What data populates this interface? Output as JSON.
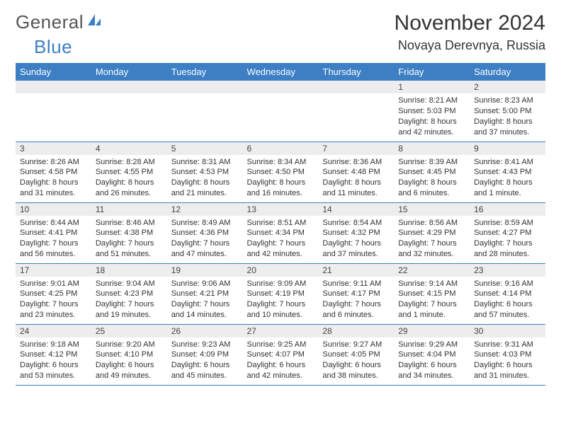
{
  "brand": {
    "word1": "General",
    "word2": "Blue"
  },
  "title": "November 2024",
  "location": "Novaya Derevnya, Russia",
  "colors": {
    "accent": "#3d7fc4",
    "daynum_bg": "#ededed",
    "text": "#333333",
    "bg": "#ffffff"
  },
  "weekdays": [
    "Sunday",
    "Monday",
    "Tuesday",
    "Wednesday",
    "Thursday",
    "Friday",
    "Saturday"
  ],
  "weeks": [
    [
      {
        "n": "",
        "sr": "",
        "ss": "",
        "dl": ""
      },
      {
        "n": "",
        "sr": "",
        "ss": "",
        "dl": ""
      },
      {
        "n": "",
        "sr": "",
        "ss": "",
        "dl": ""
      },
      {
        "n": "",
        "sr": "",
        "ss": "",
        "dl": ""
      },
      {
        "n": "",
        "sr": "",
        "ss": "",
        "dl": ""
      },
      {
        "n": "1",
        "sr": "Sunrise: 8:21 AM",
        "ss": "Sunset: 5:03 PM",
        "dl": "Daylight: 8 hours and 42 minutes."
      },
      {
        "n": "2",
        "sr": "Sunrise: 8:23 AM",
        "ss": "Sunset: 5:00 PM",
        "dl": "Daylight: 8 hours and 37 minutes."
      }
    ],
    [
      {
        "n": "3",
        "sr": "Sunrise: 8:26 AM",
        "ss": "Sunset: 4:58 PM",
        "dl": "Daylight: 8 hours and 31 minutes."
      },
      {
        "n": "4",
        "sr": "Sunrise: 8:28 AM",
        "ss": "Sunset: 4:55 PM",
        "dl": "Daylight: 8 hours and 26 minutes."
      },
      {
        "n": "5",
        "sr": "Sunrise: 8:31 AM",
        "ss": "Sunset: 4:53 PM",
        "dl": "Daylight: 8 hours and 21 minutes."
      },
      {
        "n": "6",
        "sr": "Sunrise: 8:34 AM",
        "ss": "Sunset: 4:50 PM",
        "dl": "Daylight: 8 hours and 16 minutes."
      },
      {
        "n": "7",
        "sr": "Sunrise: 8:36 AM",
        "ss": "Sunset: 4:48 PM",
        "dl": "Daylight: 8 hours and 11 minutes."
      },
      {
        "n": "8",
        "sr": "Sunrise: 8:39 AM",
        "ss": "Sunset: 4:45 PM",
        "dl": "Daylight: 8 hours and 6 minutes."
      },
      {
        "n": "9",
        "sr": "Sunrise: 8:41 AM",
        "ss": "Sunset: 4:43 PM",
        "dl": "Daylight: 8 hours and 1 minute."
      }
    ],
    [
      {
        "n": "10",
        "sr": "Sunrise: 8:44 AM",
        "ss": "Sunset: 4:41 PM",
        "dl": "Daylight: 7 hours and 56 minutes."
      },
      {
        "n": "11",
        "sr": "Sunrise: 8:46 AM",
        "ss": "Sunset: 4:38 PM",
        "dl": "Daylight: 7 hours and 51 minutes."
      },
      {
        "n": "12",
        "sr": "Sunrise: 8:49 AM",
        "ss": "Sunset: 4:36 PM",
        "dl": "Daylight: 7 hours and 47 minutes."
      },
      {
        "n": "13",
        "sr": "Sunrise: 8:51 AM",
        "ss": "Sunset: 4:34 PM",
        "dl": "Daylight: 7 hours and 42 minutes."
      },
      {
        "n": "14",
        "sr": "Sunrise: 8:54 AM",
        "ss": "Sunset: 4:32 PM",
        "dl": "Daylight: 7 hours and 37 minutes."
      },
      {
        "n": "15",
        "sr": "Sunrise: 8:56 AM",
        "ss": "Sunset: 4:29 PM",
        "dl": "Daylight: 7 hours and 32 minutes."
      },
      {
        "n": "16",
        "sr": "Sunrise: 8:59 AM",
        "ss": "Sunset: 4:27 PM",
        "dl": "Daylight: 7 hours and 28 minutes."
      }
    ],
    [
      {
        "n": "17",
        "sr": "Sunrise: 9:01 AM",
        "ss": "Sunset: 4:25 PM",
        "dl": "Daylight: 7 hours and 23 minutes."
      },
      {
        "n": "18",
        "sr": "Sunrise: 9:04 AM",
        "ss": "Sunset: 4:23 PM",
        "dl": "Daylight: 7 hours and 19 minutes."
      },
      {
        "n": "19",
        "sr": "Sunrise: 9:06 AM",
        "ss": "Sunset: 4:21 PM",
        "dl": "Daylight: 7 hours and 14 minutes."
      },
      {
        "n": "20",
        "sr": "Sunrise: 9:09 AM",
        "ss": "Sunset: 4:19 PM",
        "dl": "Daylight: 7 hours and 10 minutes."
      },
      {
        "n": "21",
        "sr": "Sunrise: 9:11 AM",
        "ss": "Sunset: 4:17 PM",
        "dl": "Daylight: 7 hours and 6 minutes."
      },
      {
        "n": "22",
        "sr": "Sunrise: 9:14 AM",
        "ss": "Sunset: 4:15 PM",
        "dl": "Daylight: 7 hours and 1 minute."
      },
      {
        "n": "23",
        "sr": "Sunrise: 9:16 AM",
        "ss": "Sunset: 4:14 PM",
        "dl": "Daylight: 6 hours and 57 minutes."
      }
    ],
    [
      {
        "n": "24",
        "sr": "Sunrise: 9:18 AM",
        "ss": "Sunset: 4:12 PM",
        "dl": "Daylight: 6 hours and 53 minutes."
      },
      {
        "n": "25",
        "sr": "Sunrise: 9:20 AM",
        "ss": "Sunset: 4:10 PM",
        "dl": "Daylight: 6 hours and 49 minutes."
      },
      {
        "n": "26",
        "sr": "Sunrise: 9:23 AM",
        "ss": "Sunset: 4:09 PM",
        "dl": "Daylight: 6 hours and 45 minutes."
      },
      {
        "n": "27",
        "sr": "Sunrise: 9:25 AM",
        "ss": "Sunset: 4:07 PM",
        "dl": "Daylight: 6 hours and 42 minutes."
      },
      {
        "n": "28",
        "sr": "Sunrise: 9:27 AM",
        "ss": "Sunset: 4:05 PM",
        "dl": "Daylight: 6 hours and 38 minutes."
      },
      {
        "n": "29",
        "sr": "Sunrise: 9:29 AM",
        "ss": "Sunset: 4:04 PM",
        "dl": "Daylight: 6 hours and 34 minutes."
      },
      {
        "n": "30",
        "sr": "Sunrise: 9:31 AM",
        "ss": "Sunset: 4:03 PM",
        "dl": "Daylight: 6 hours and 31 minutes."
      }
    ]
  ]
}
